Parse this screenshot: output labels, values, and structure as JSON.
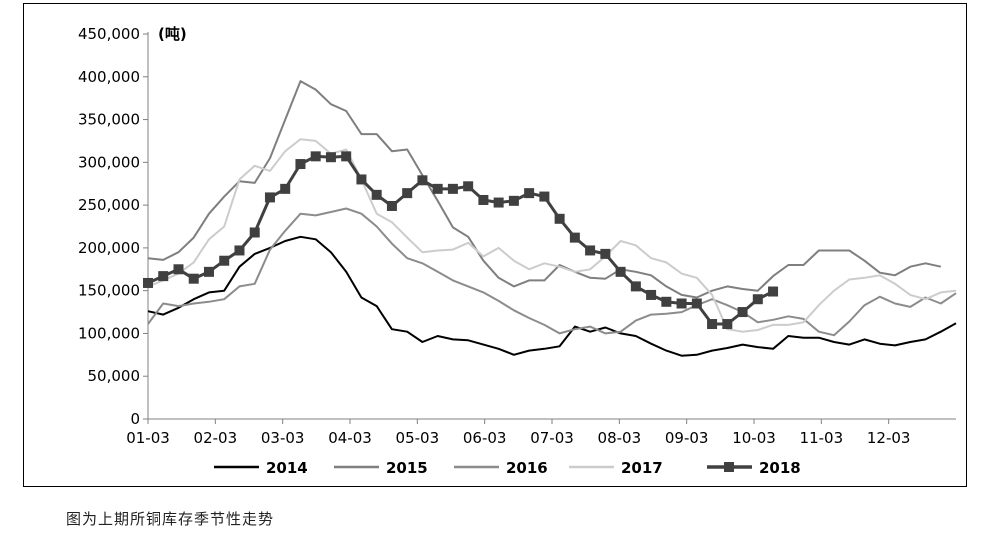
{
  "caption": "图为上期所铜库存季节性走势",
  "chart_data": {
    "type": "line",
    "unit_label": "(吨)",
    "ylim": [
      0,
      450000
    ],
    "yticks": [
      0,
      50000,
      100000,
      150000,
      200000,
      250000,
      300000,
      350000,
      400000,
      450000
    ],
    "ytick_labels": [
      "0",
      "50,000",
      "100,000",
      "150,000",
      "200,000",
      "250,000",
      "300,000",
      "350,000",
      "400,000",
      "450,000"
    ],
    "xticks": [
      "01-03",
      "02-03",
      "03-03",
      "04-03",
      "05-03",
      "06-03",
      "07-03",
      "08-03",
      "09-03",
      "10-03",
      "11-03",
      "12-03"
    ],
    "legend_position": "bottom",
    "series": [
      {
        "name": "2014",
        "color": "#000000",
        "width": 2,
        "marker": "none",
        "values": [
          126000,
          122000,
          130000,
          140000,
          148000,
          150000,
          178000,
          193000,
          200000,
          208000,
          213000,
          210000,
          195000,
          172000,
          142000,
          132000,
          105000,
          102000,
          90000,
          97000,
          93000,
          92000,
          87000,
          82000,
          75000,
          80000,
          82000,
          85000,
          108000,
          102000,
          107000,
          100000,
          97000,
          88000,
          80000,
          74000,
          75000,
          80000,
          83000,
          87000,
          84000,
          82000,
          97000,
          95000,
          95000,
          90000,
          87000,
          93000,
          88000,
          86000,
          90000,
          93000,
          102000,
          112000
        ]
      },
      {
        "name": "2015",
        "color": "#7f7f7f",
        "width": 2,
        "marker": "none",
        "values": [
          188000,
          186000,
          195000,
          212000,
          240000,
          260000,
          278000,
          276000,
          305000,
          350000,
          395000,
          385000,
          368000,
          360000,
          333000,
          333000,
          313000,
          315000,
          285000,
          255000,
          224000,
          213000,
          185000,
          165000,
          155000,
          162000,
          162000,
          180000,
          172000,
          165000,
          164000,
          175000,
          172000,
          168000,
          155000,
          145000,
          142000,
          150000,
          155000,
          152000,
          150000,
          167000,
          180000,
          180000,
          197000,
          197000,
          197000,
          185000,
          171000,
          168000,
          178000,
          182000,
          178000
        ]
      },
      {
        "name": "2016",
        "color": "#8c8c8c",
        "width": 2,
        "marker": "none",
        "values": [
          111000,
          135000,
          132000,
          135000,
          137000,
          140000,
          155000,
          158000,
          198000,
          220000,
          240000,
          238000,
          242000,
          246000,
          240000,
          225000,
          205000,
          188000,
          182000,
          172000,
          162000,
          155000,
          148000,
          138000,
          127000,
          118000,
          110000,
          100000,
          105000,
          108000,
          100000,
          102000,
          115000,
          122000,
          123000,
          125000,
          133000,
          140000,
          133000,
          125000,
          113000,
          116000,
          120000,
          117000,
          102000,
          98000,
          114000,
          133000,
          143000,
          135000,
          131000,
          142000,
          135000,
          147000
        ]
      },
      {
        "name": "2017",
        "color": "#cccccc",
        "width": 2,
        "marker": "none",
        "values": [
          155000,
          162000,
          170000,
          183000,
          210000,
          225000,
          280000,
          296000,
          290000,
          313000,
          327000,
          325000,
          310000,
          315000,
          280000,
          240000,
          230000,
          212000,
          195000,
          197000,
          198000,
          206000,
          190000,
          200000,
          185000,
          175000,
          182000,
          178000,
          172000,
          175000,
          190000,
          208000,
          203000,
          188000,
          183000,
          170000,
          165000,
          145000,
          105000,
          102000,
          104000,
          110000,
          110000,
          113000,
          133000,
          150000,
          163000,
          165000,
          168000,
          158000,
          145000,
          140000,
          148000,
          150000
        ]
      },
      {
        "name": "2018",
        "color": "#404040",
        "width": 3,
        "marker": "square",
        "values": [
          159000,
          167000,
          175000,
          164000,
          172000,
          185000,
          197000,
          218000,
          259000,
          269000,
          298000,
          307000,
          306000,
          307000,
          280000,
          262000,
          249000,
          264000,
          279000,
          269000,
          269000,
          272000,
          256000,
          253000,
          255000,
          264000,
          260000,
          234000,
          212000,
          197000,
          193000,
          172000,
          155000,
          145000,
          137000,
          135000,
          135000,
          111000,
          111000,
          125000,
          140000,
          149000
        ]
      }
    ]
  }
}
